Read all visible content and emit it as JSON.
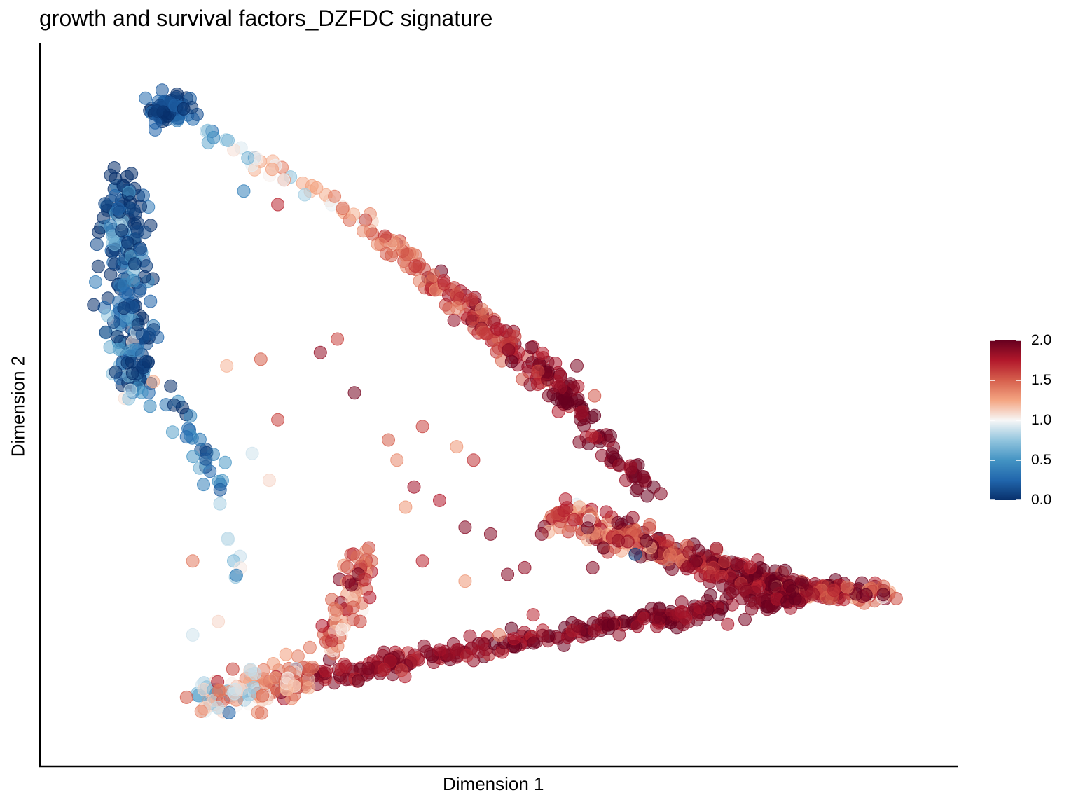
{
  "chart_data": {
    "type": "scatter",
    "title": "growth and survival factors_DZFDC signature",
    "xlabel": "Dimension 1",
    "ylabel": "Dimension 2",
    "xlim": [
      0,
      100
    ],
    "ylim": [
      0,
      100
    ],
    "point_alpha": 0.55,
    "colorbar": {
      "range": [
        0.0,
        2.0
      ],
      "ticks": [
        "0.0",
        "0.5",
        "1.0",
        "1.5",
        "2.0"
      ],
      "colors": [
        "#08306b",
        "#2166ac",
        "#4393c3",
        "#92c5de",
        "#f7f7f7",
        "#f4a582",
        "#d6604d",
        "#b2182b",
        "#67001f"
      ]
    },
    "segments": [
      {
        "name": "top-left cluster",
        "x0": 9.5,
        "y0": 94,
        "x1": 12.5,
        "y1": 94,
        "n": 70,
        "spread": 2.0,
        "v0": 0.05,
        "v1": 0.25,
        "vnoise": 0.15
      },
      {
        "name": "left column",
        "x0": 5.5,
        "y0": 83,
        "x1": 7.5,
        "y1": 52,
        "n": 230,
        "spread": 2.2,
        "v0": 0.05,
        "v1": 0.3,
        "vnoise": 0.35
      },
      {
        "name": "left arm",
        "x0": 11,
        "y0": 52,
        "x1": 17,
        "y1": 38,
        "n": 30,
        "spread": 1.3,
        "v0": 0.1,
        "v1": 0.45,
        "vnoise": 0.25
      },
      {
        "name": "lower left",
        "x0": 17,
        "y0": 35,
        "x1": 19,
        "y1": 24,
        "n": 8,
        "spread": 1.0,
        "v0": 0.5,
        "v1": 0.8,
        "vnoise": 0.2
      },
      {
        "name": "top arc",
        "x0": 14,
        "y0": 92,
        "x1": 35,
        "y1": 77,
        "n": 45,
        "spread": 1.2,
        "v0": 0.7,
        "v1": 1.35,
        "vnoise": 0.25
      },
      {
        "name": "upper ridge",
        "x0": 35,
        "y0": 76,
        "x1": 48,
        "y1": 63,
        "n": 80,
        "spread": 1.3,
        "v0": 1.35,
        "v1": 1.7,
        "vnoise": 0.2
      },
      {
        "name": "upper branch",
        "x0": 48,
        "y0": 62,
        "x1": 60,
        "y1": 50,
        "n": 110,
        "spread": 1.8,
        "v0": 1.7,
        "v1": 1.95,
        "vnoise": 0.15
      },
      {
        "name": "right arm",
        "x0": 60,
        "y0": 48,
        "x1": 67,
        "y1": 38,
        "n": 45,
        "spread": 1.4,
        "v0": 1.9,
        "v1": 1.95,
        "vnoise": 0.1
      },
      {
        "name": "middle arm",
        "x0": 57,
        "y0": 34,
        "x1": 83,
        "y1": 23,
        "n": 300,
        "spread": 1.8,
        "v0": 1.45,
        "v1": 1.95,
        "vnoise": 0.25
      },
      {
        "name": "right tip",
        "x0": 83,
        "y0": 23,
        "x1": 96,
        "y1": 22,
        "n": 120,
        "spread": 1.1,
        "v0": 1.9,
        "v1": 1.5,
        "vnoise": 0.25
      },
      {
        "name": "lower arm",
        "x0": 25,
        "y0": 9,
        "x1": 85,
        "y1": 22,
        "n": 300,
        "spread": 1.4,
        "v0": 1.85,
        "v1": 1.95,
        "vnoise": 0.1
      },
      {
        "name": "bottom cluster",
        "x0": 15,
        "y0": 6,
        "x1": 27,
        "y1": 10,
        "n": 130,
        "spread": 2.2,
        "v0": 0.95,
        "v1": 1.4,
        "vnoise": 0.3
      },
      {
        "name": "lower spur",
        "x0": 30,
        "y0": 14,
        "x1": 35,
        "y1": 28,
        "n": 70,
        "spread": 1.8,
        "v0": 1.3,
        "v1": 1.7,
        "vnoise": 0.25
      }
    ],
    "scattered_points": [
      {
        "x": 20,
        "y": 82,
        "v": 0.4
      },
      {
        "x": 24,
        "y": 80,
        "v": 1.7
      },
      {
        "x": 31,
        "y": 60,
        "v": 1.6
      },
      {
        "x": 29,
        "y": 58,
        "v": 1.85
      },
      {
        "x": 18,
        "y": 56,
        "v": 1.2
      },
      {
        "x": 22,
        "y": 57,
        "v": 1.5
      },
      {
        "x": 24,
        "y": 48,
        "v": 1.6
      },
      {
        "x": 23,
        "y": 39,
        "v": 1.1
      },
      {
        "x": 21,
        "y": 43,
        "v": 0.9
      },
      {
        "x": 37,
        "y": 45,
        "v": 1.5
      },
      {
        "x": 41,
        "y": 47,
        "v": 1.6
      },
      {
        "x": 45,
        "y": 44,
        "v": 1.3
      },
      {
        "x": 47,
        "y": 42,
        "v": 1.65
      },
      {
        "x": 40,
        "y": 38,
        "v": 1.8
      },
      {
        "x": 43,
        "y": 36,
        "v": 1.75
      },
      {
        "x": 46,
        "y": 32,
        "v": 1.9
      },
      {
        "x": 49,
        "y": 31,
        "v": 1.9
      },
      {
        "x": 51,
        "y": 25,
        "v": 1.9
      },
      {
        "x": 53,
        "y": 26,
        "v": 1.85
      },
      {
        "x": 55,
        "y": 31,
        "v": 1.9
      },
      {
        "x": 46,
        "y": 24,
        "v": 1.3
      },
      {
        "x": 50,
        "y": 16,
        "v": 1.4
      },
      {
        "x": 54,
        "y": 19,
        "v": 1.7
      },
      {
        "x": 61,
        "y": 26,
        "v": 1.9
      },
      {
        "x": 64,
        "y": 30,
        "v": 1.85
      },
      {
        "x": 66,
        "y": 28,
        "v": 0.1
      },
      {
        "x": 69,
        "y": 37,
        "v": 1.9
      },
      {
        "x": 39,
        "y": 35,
        "v": 1.3
      },
      {
        "x": 35,
        "y": 27,
        "v": 1.5
      },
      {
        "x": 41,
        "y": 27,
        "v": 1.7
      },
      {
        "x": 14,
        "y": 27,
        "v": 1.4
      },
      {
        "x": 17,
        "y": 18,
        "v": 1.1
      },
      {
        "x": 14,
        "y": 16,
        "v": 0.9
      },
      {
        "x": 38,
        "y": 42,
        "v": 1.35
      },
      {
        "x": 33,
        "y": 52,
        "v": 1.95
      }
    ]
  }
}
